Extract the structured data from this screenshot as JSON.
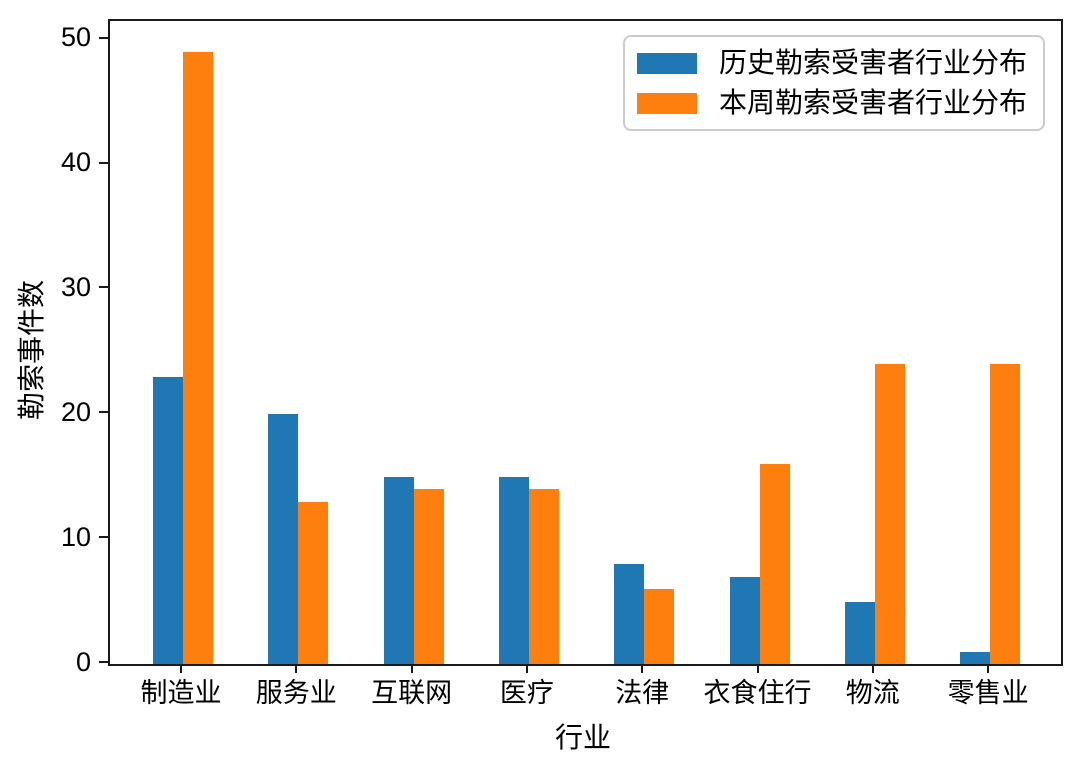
{
  "chart_data": {
    "type": "bar",
    "categories": [
      "制造业",
      "服务业",
      "互联网",
      "医疗",
      "法律",
      "衣食住行",
      "物流",
      "零售业"
    ],
    "series": [
      {
        "name": "历史勒索受害者行业分布",
        "color": "#1f77b4",
        "values": [
          23,
          20,
          15,
          15,
          8,
          7,
          5,
          1
        ]
      },
      {
        "name": "本周勒索受害者行业分布",
        "color": "#ff7f0e",
        "values": [
          49,
          13,
          14,
          14,
          6,
          16,
          24,
          24
        ]
      }
    ],
    "xlabel": "行业",
    "ylabel": "勒索事件数",
    "yticks": [
      0,
      10,
      20,
      30,
      40,
      50
    ],
    "ylim": [
      0,
      51.5
    ],
    "grid": false,
    "legend_position": "upper right",
    "spine_color": "#1a1a1a",
    "background": "#ffffff"
  }
}
